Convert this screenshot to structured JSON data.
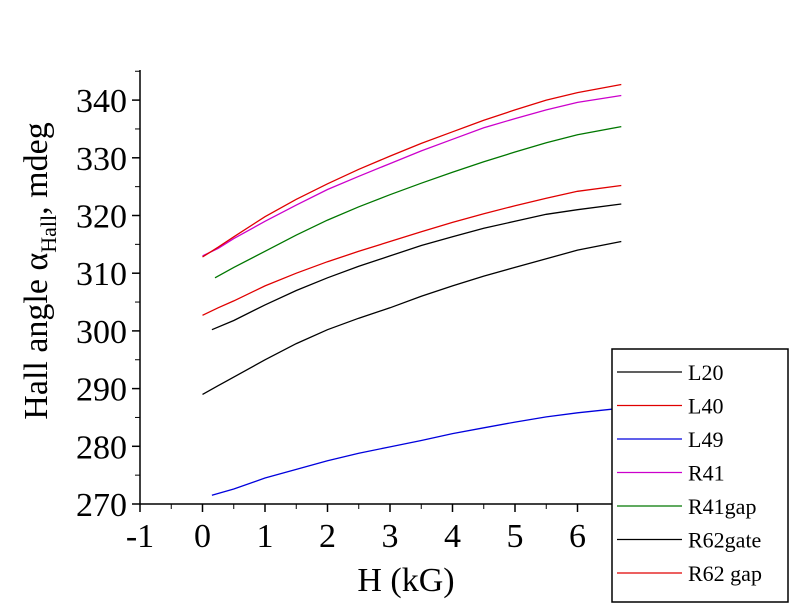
{
  "chart_data": {
    "type": "line",
    "xlabel": "H (kG)",
    "ylabel": {
      "main": "Hall angle α",
      "subscript": "Hall",
      "suffix": ", mdeg"
    },
    "xlim": [
      -1,
      7
    ],
    "ylim": [
      270,
      345
    ],
    "x_ticks": [
      -1,
      0,
      1,
      2,
      3,
      4,
      5,
      6
    ],
    "y_ticks": [
      270,
      280,
      290,
      300,
      310,
      320,
      330,
      340
    ],
    "legend_position": "bottom-right",
    "grid": false,
    "series": [
      {
        "name": "L20",
        "color": "#000000",
        "x": [
          0.0,
          0.25,
          0.5,
          1.0,
          1.5,
          2.0,
          2.5,
          3.0,
          3.5,
          4.0,
          4.5,
          5.0,
          5.5,
          6.0,
          6.7
        ],
        "y": [
          289.0,
          290.5,
          292.0,
          295.0,
          297.8,
          300.2,
          302.2,
          304.0,
          306.0,
          307.8,
          309.5,
          311.0,
          312.5,
          314.0,
          315.5
        ]
      },
      {
        "name": "L40",
        "color": "#e00000",
        "x": [
          0.0,
          0.25,
          0.5,
          1.0,
          1.5,
          2.0,
          2.5,
          3.0,
          3.5,
          4.0,
          4.5,
          5.0,
          5.5,
          6.0,
          6.7
        ],
        "y": [
          302.7,
          304.0,
          305.2,
          307.8,
          310.0,
          312.0,
          313.8,
          315.5,
          317.2,
          318.8,
          320.3,
          321.7,
          323.0,
          324.2,
          325.2
        ]
      },
      {
        "name": "L49",
        "color": "#0000dd",
        "x": [
          0.15,
          0.5,
          1.0,
          1.5,
          2.0,
          2.5,
          3.0,
          3.5,
          4.0,
          4.5,
          5.0,
          5.5,
          6.0,
          6.7
        ],
        "y": [
          271.5,
          272.6,
          274.5,
          276.0,
          277.5,
          278.8,
          279.9,
          281.0,
          282.2,
          283.2,
          284.2,
          285.1,
          285.8,
          286.6
        ]
      },
      {
        "name": "R41",
        "color": "#cc00cc",
        "x": [
          0.0,
          0.25,
          0.5,
          1.0,
          1.5,
          2.0,
          2.5,
          3.0,
          3.5,
          4.0,
          4.5,
          5.0,
          5.5,
          6.0,
          6.7
        ],
        "y": [
          313.0,
          314.3,
          316.0,
          319.0,
          321.8,
          324.5,
          326.8,
          329.0,
          331.2,
          333.2,
          335.2,
          336.8,
          338.3,
          339.6,
          340.8
        ]
      },
      {
        "name": "R41gap",
        "color": "#007700",
        "x": [
          0.2,
          0.5,
          1.0,
          1.5,
          2.0,
          2.5,
          3.0,
          3.5,
          4.0,
          4.5,
          5.0,
          5.5,
          6.0,
          6.7
        ],
        "y": [
          309.2,
          311.0,
          313.8,
          316.6,
          319.2,
          321.5,
          323.6,
          325.6,
          327.5,
          329.3,
          331.0,
          332.6,
          334.0,
          335.4
        ]
      },
      {
        "name": "R62gate",
        "color": "#000000",
        "x": [
          0.15,
          0.5,
          1.0,
          1.5,
          2.0,
          2.5,
          3.0,
          3.5,
          4.0,
          4.5,
          5.0,
          5.5,
          6.0,
          6.7
        ],
        "y": [
          300.2,
          301.8,
          304.5,
          307.0,
          309.2,
          311.2,
          313.0,
          314.8,
          316.3,
          317.8,
          319.0,
          320.2,
          321.0,
          322.0
        ]
      },
      {
        "name": "R62 gap",
        "color": "#e00000",
        "x": [
          0.0,
          0.25,
          0.5,
          1.0,
          1.5,
          2.0,
          2.5,
          3.0,
          3.5,
          4.0,
          4.5,
          5.0,
          5.5,
          6.0,
          6.7
        ],
        "y": [
          312.8,
          314.5,
          316.3,
          319.8,
          322.8,
          325.5,
          328.0,
          330.3,
          332.5,
          334.5,
          336.5,
          338.3,
          340.0,
          341.3,
          342.7
        ]
      }
    ]
  }
}
